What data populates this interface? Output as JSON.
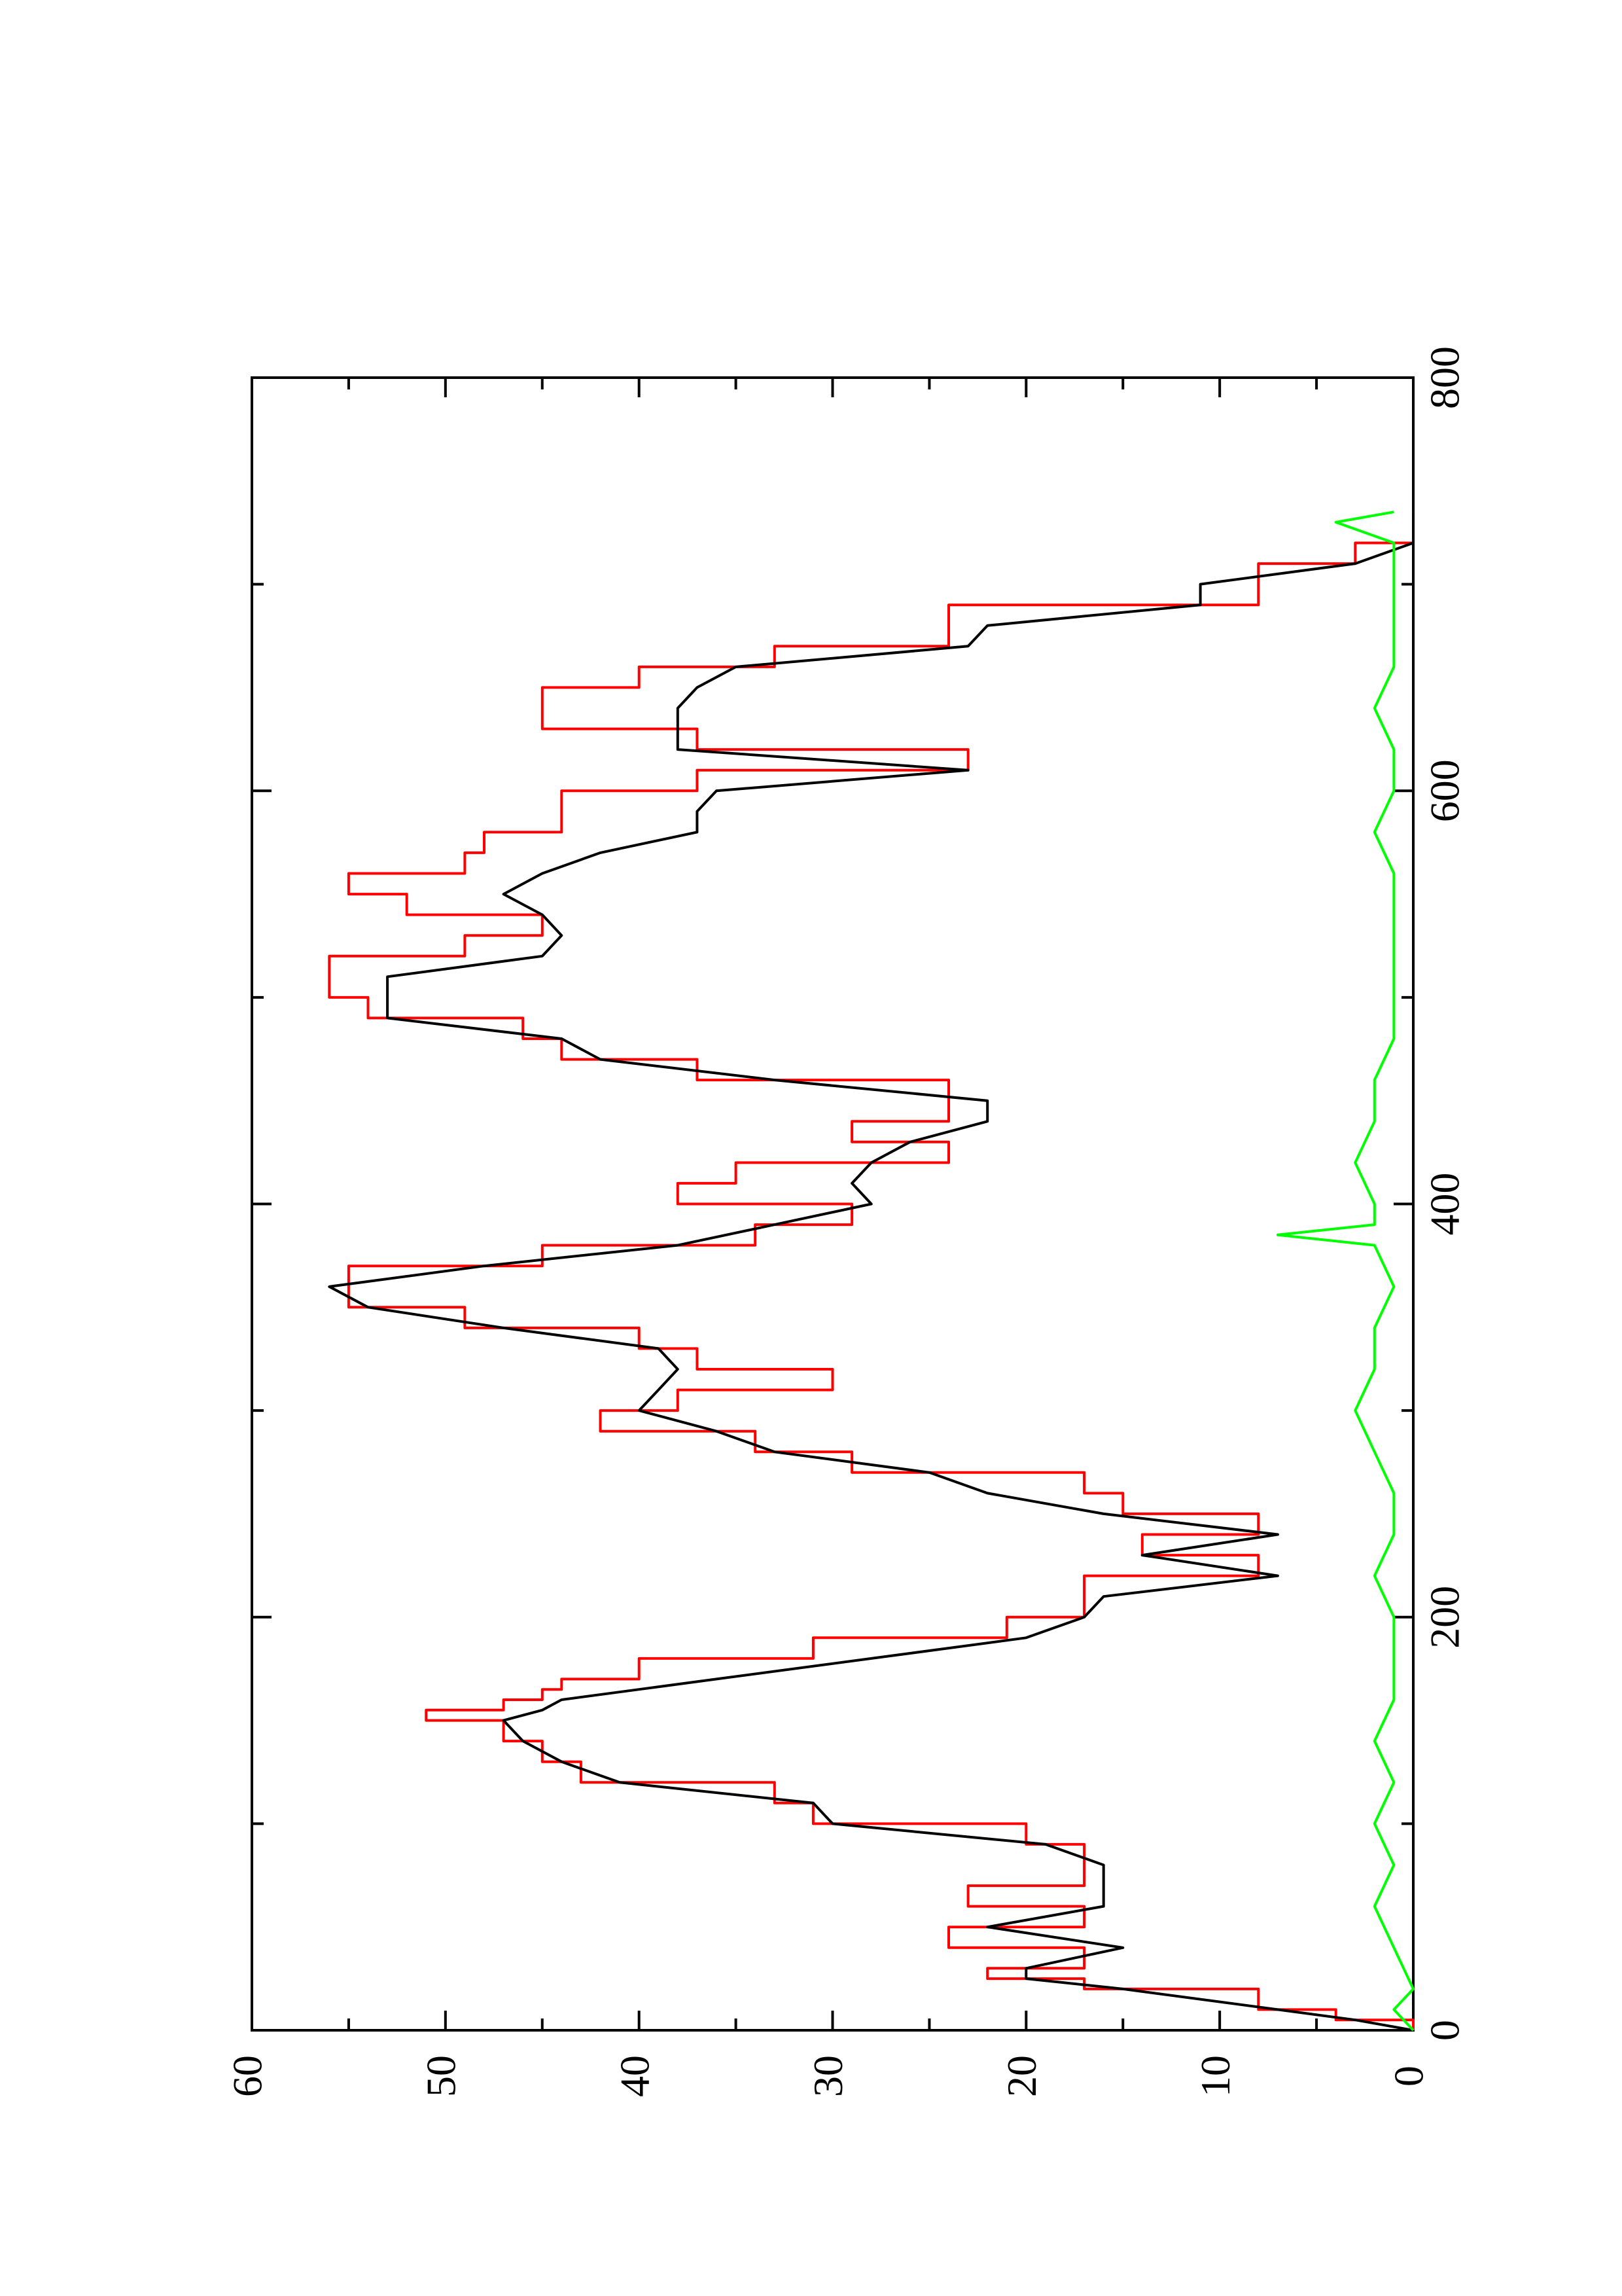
{
  "chart_data": {
    "type": "line",
    "orientation": "rotated-90-ccw",
    "xlim": [
      0,
      800
    ],
    "ylim": [
      0,
      60
    ],
    "x_ticks": [
      "0",
      "200",
      "400",
      "600",
      "800"
    ],
    "y_ticks": [
      "0",
      "10",
      "20",
      "30",
      "40",
      "50",
      "60"
    ],
    "grid": false,
    "legend": "none",
    "series": [
      {
        "color": "#ff0000",
        "style": "step",
        "x": [
          0,
          5,
          10,
          20,
          25,
          30,
          40,
          50,
          60,
          70,
          80,
          90,
          100,
          110,
          120,
          130,
          140,
          150,
          155,
          160,
          165,
          170,
          180,
          190,
          200,
          210,
          220,
          230,
          240,
          250,
          260,
          270,
          280,
          290,
          300,
          310,
          320,
          330,
          340,
          350,
          360,
          370,
          380,
          390,
          400,
          410,
          420,
          430,
          440,
          450,
          460,
          470,
          480,
          490,
          500,
          510,
          520,
          530,
          540,
          550,
          560,
          570,
          580,
          590,
          600,
          610,
          620,
          630,
          640,
          650,
          660,
          670,
          680,
          690,
          700,
          710,
          720,
          730,
          735
        ],
        "y": [
          0,
          4,
          8,
          17,
          22,
          17,
          24,
          17,
          23,
          17,
          17,
          20,
          31,
          33,
          43,
          45,
          47,
          51,
          47,
          45,
          44,
          40,
          31,
          21,
          17,
          17,
          8,
          14,
          8,
          15,
          17,
          29,
          34,
          42,
          38,
          30,
          37,
          40,
          49,
          55,
          55,
          45,
          34,
          29,
          38,
          35,
          24,
          29,
          24,
          24,
          37,
          44,
          46,
          54,
          56,
          56,
          49,
          45,
          52,
          55,
          49,
          48,
          44,
          44,
          37,
          23,
          37,
          45,
          45,
          40,
          33,
          24,
          24,
          8,
          8,
          3,
          0,
          0,
          0
        ]
      },
      {
        "color": "#000000",
        "style": "line",
        "x": [
          0,
          5,
          10,
          20,
          25,
          30,
          40,
          50,
          60,
          70,
          80,
          90,
          100,
          110,
          120,
          130,
          140,
          150,
          155,
          160,
          165,
          170,
          180,
          190,
          200,
          210,
          220,
          230,
          240,
          250,
          260,
          270,
          280,
          290,
          300,
          310,
          320,
          330,
          340,
          350,
          360,
          370,
          380,
          390,
          400,
          410,
          420,
          430,
          440,
          450,
          460,
          470,
          480,
          490,
          500,
          510,
          520,
          530,
          540,
          550,
          560,
          570,
          580,
          590,
          600,
          610,
          620,
          630,
          640,
          650,
          660,
          670,
          680,
          690,
          700,
          710,
          720,
          730,
          735
        ],
        "y": [
          0,
          3,
          7,
          15,
          20,
          20,
          15,
          22,
          16,
          16,
          16,
          19,
          30,
          31,
          41,
          44,
          46,
          47,
          45,
          44,
          40,
          36,
          28,
          20,
          17,
          16,
          7,
          14,
          7,
          16,
          22,
          25,
          33,
          36,
          40,
          39,
          38,
          39,
          47,
          54,
          56,
          48,
          38,
          33,
          28,
          29,
          28,
          26,
          22,
          22,
          33,
          42,
          44,
          53,
          53,
          53,
          45,
          44,
          45,
          47,
          45,
          42,
          37,
          37,
          36,
          23,
          38,
          38,
          38,
          37,
          35,
          23,
          22,
          11,
          11,
          3,
          0,
          0,
          0
        ]
      },
      {
        "color": "#00ff00",
        "style": "noise",
        "x": [
          0,
          10,
          20,
          40,
          60,
          80,
          100,
          120,
          140,
          160,
          180,
          200,
          220,
          240,
          260,
          280,
          300,
          320,
          340,
          360,
          380,
          385,
          390,
          400,
          420,
          440,
          460,
          480,
          500,
          520,
          540,
          560,
          580,
          600,
          620,
          640,
          660,
          680,
          700,
          720,
          730,
          735
        ],
        "y": [
          0,
          1,
          0,
          1,
          2,
          1,
          2,
          1,
          2,
          1,
          1,
          1,
          2,
          1,
          1,
          2,
          3,
          2,
          2,
          1,
          2,
          7,
          2,
          2,
          3,
          2,
          2,
          1,
          1,
          1,
          1,
          1,
          2,
          1,
          1,
          2,
          1,
          1,
          1,
          1,
          4,
          1
        ]
      }
    ]
  }
}
